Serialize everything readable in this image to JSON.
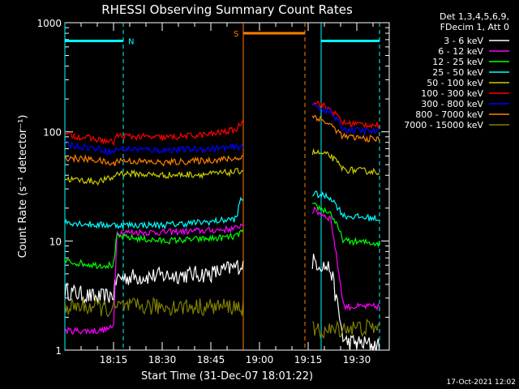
{
  "chart_data": {
    "type": "line",
    "title": "RHESSI Observing Summary Count Rates",
    "xlabel": "Start Time (31-Dec-07 18:01:22)",
    "ylabel": "Count Rate (s⁻¹ detector⁻¹)",
    "yscale": "log",
    "ylim": [
      1,
      1000
    ],
    "xlim_minutes": [
      0,
      100
    ],
    "x_ticks": [
      {
        "label": "18:15",
        "value": 15
      },
      {
        "label": "18:30",
        "value": 30
      },
      {
        "label": "18:45",
        "value": 45
      },
      {
        "label": "19:00",
        "value": 60
      },
      {
        "label": "19:15",
        "value": 75
      },
      {
        "label": "19:30",
        "value": 90
      }
    ],
    "y_ticks": [
      {
        "label": "1",
        "value": 1
      },
      {
        "label": "10",
        "value": 10
      },
      {
        "label": "100",
        "value": 100
      },
      {
        "label": "1000",
        "value": 1000
      }
    ],
    "legend_header": [
      "Det 1,3,4,5,6,9,",
      "FDecim 1, Att 0"
    ],
    "legend_position": "right",
    "timestamp": "17-Oct-2021 12:02",
    "series": [
      {
        "name": "3 - 6 keV",
        "color": "#ffffff",
        "points": [
          [
            0,
            3.5
          ],
          [
            10,
            3.0
          ],
          [
            15,
            3.2
          ],
          [
            16,
            4.6
          ],
          [
            30,
            4.8
          ],
          [
            45,
            5.0
          ],
          [
            53,
            5.8
          ],
          [
            54,
            6.0
          ],
          [
            77,
            6.5
          ],
          [
            82,
            5.5
          ],
          [
            86,
            1.2
          ],
          [
            97,
            1.1
          ]
        ]
      },
      {
        "name": "6 - 12 keV",
        "color": "#ff00ff",
        "points": [
          [
            0,
            1.5
          ],
          [
            10,
            1.5
          ],
          [
            15,
            1.6
          ],
          [
            16,
            12
          ],
          [
            30,
            12
          ],
          [
            45,
            12.5
          ],
          [
            53,
            13
          ],
          [
            54,
            14
          ],
          [
            77,
            19
          ],
          [
            82,
            16
          ],
          [
            86,
            2.5
          ],
          [
            97,
            2.5
          ]
        ]
      },
      {
        "name": "12 - 25 keV",
        "color": "#00ff00",
        "points": [
          [
            0,
            6.5
          ],
          [
            10,
            6.0
          ],
          [
            15,
            6.0
          ],
          [
            16,
            11
          ],
          [
            30,
            10
          ],
          [
            45,
            10.5
          ],
          [
            53,
            11
          ],
          [
            54,
            12
          ],
          [
            77,
            21
          ],
          [
            82,
            18
          ],
          [
            86,
            10
          ],
          [
            97,
            9.5
          ]
        ]
      },
      {
        "name": "25 - 50 keV",
        "color": "#00ffff",
        "points": [
          [
            0,
            15
          ],
          [
            10,
            14
          ],
          [
            15,
            14
          ],
          [
            16,
            14
          ],
          [
            30,
            14
          ],
          [
            45,
            15
          ],
          [
            53,
            16
          ],
          [
            54,
            24
          ],
          [
            77,
            27
          ],
          [
            82,
            25
          ],
          [
            86,
            17
          ],
          [
            97,
            16
          ]
        ]
      },
      {
        "name": "50 - 100 keV",
        "color": "#cccc00",
        "points": [
          [
            0,
            37
          ],
          [
            10,
            35
          ],
          [
            15,
            38
          ],
          [
            16,
            42
          ],
          [
            30,
            40
          ],
          [
            45,
            41
          ],
          [
            53,
            43
          ],
          [
            54,
            44
          ],
          [
            77,
            65
          ],
          [
            82,
            60
          ],
          [
            86,
            45
          ],
          [
            97,
            43
          ]
        ]
      },
      {
        "name": "100 - 300 keV",
        "color": "#ff0000",
        "points": [
          [
            0,
            95
          ],
          [
            10,
            85
          ],
          [
            15,
            80
          ],
          [
            16,
            92
          ],
          [
            30,
            88
          ],
          [
            45,
            95
          ],
          [
            53,
            105
          ],
          [
            54,
            120
          ],
          [
            77,
            190
          ],
          [
            82,
            160
          ],
          [
            86,
            120
          ],
          [
            97,
            115
          ]
        ]
      },
      {
        "name": "300 - 800 keV",
        "color": "#0000ff",
        "points": [
          [
            0,
            77
          ],
          [
            10,
            70
          ],
          [
            15,
            65
          ],
          [
            16,
            70
          ],
          [
            30,
            68
          ],
          [
            45,
            70
          ],
          [
            53,
            72
          ],
          [
            54,
            73
          ],
          [
            77,
            175
          ],
          [
            82,
            150
          ],
          [
            86,
            105
          ],
          [
            97,
            100
          ]
        ]
      },
      {
        "name": "800 - 7000 keV",
        "color": "#ff8000",
        "points": [
          [
            0,
            58
          ],
          [
            10,
            55
          ],
          [
            15,
            50
          ],
          [
            16,
            55
          ],
          [
            30,
            52
          ],
          [
            45,
            55
          ],
          [
            53,
            57
          ],
          [
            54,
            58
          ],
          [
            77,
            140
          ],
          [
            82,
            115
          ],
          [
            86,
            90
          ],
          [
            97,
            85
          ]
        ]
      },
      {
        "name": "7000 - 15000 keV",
        "color": "#808000",
        "points": [
          [
            0,
            2.5
          ],
          [
            10,
            2.5
          ],
          [
            15,
            2.3
          ],
          [
            16,
            2.5
          ],
          [
            30,
            2.5
          ],
          [
            45,
            2.5
          ],
          [
            53,
            2.5
          ],
          [
            54,
            2.5
          ],
          [
            77,
            1.5
          ],
          [
            82,
            1.5
          ],
          [
            86,
            1.6
          ],
          [
            97,
            1.6
          ]
        ]
      }
    ],
    "overlays": [
      {
        "label": "N",
        "color": "#00ffff",
        "start": 0,
        "end": 18,
        "level": 680
      },
      {
        "label": "S",
        "color": "#ff8000",
        "start": 55,
        "end": 74,
        "level": 800
      },
      {
        "label": "",
        "color": "#00ffff",
        "start": 79,
        "end": 97,
        "level": 680
      }
    ]
  }
}
